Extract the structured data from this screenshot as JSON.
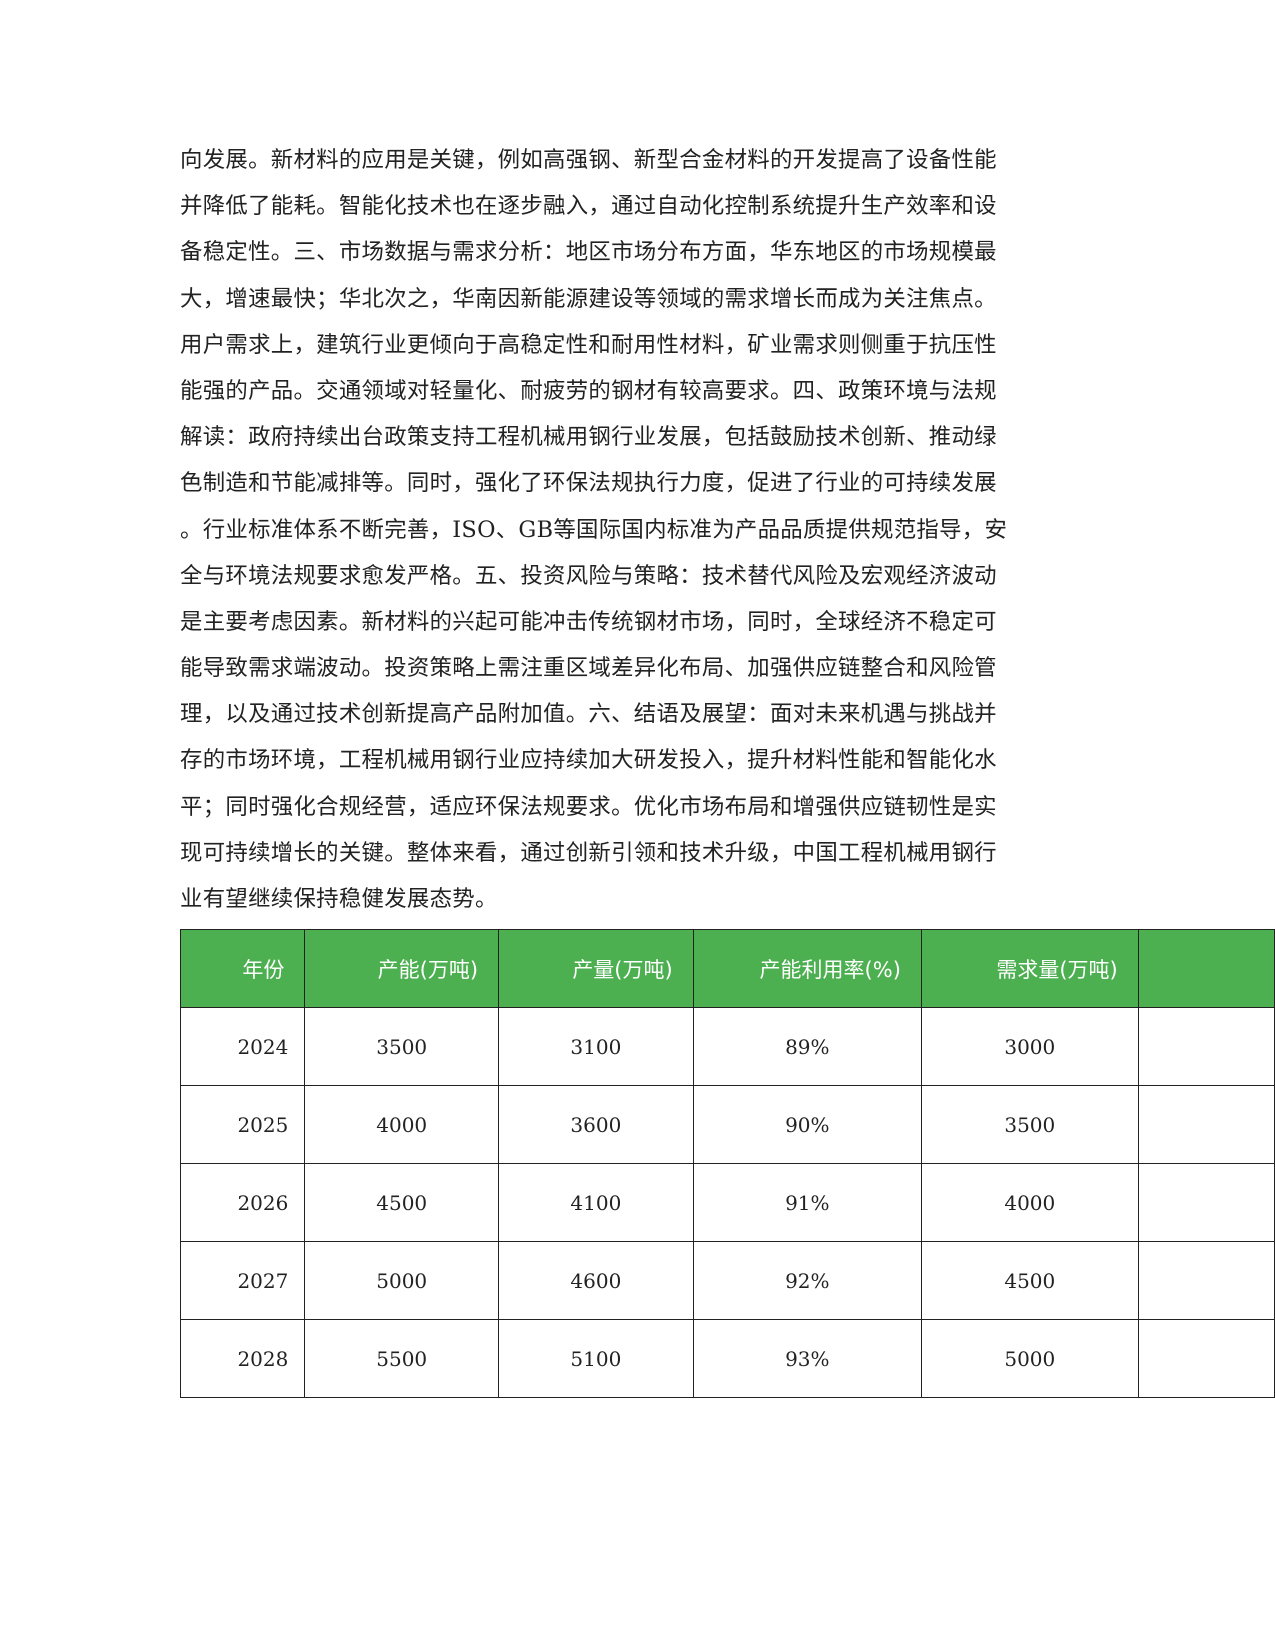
{
  "body_lines": [
    "向发展。新材料的应用是关键，例如高强钢、新型合金材料的开发提高了设备性能",
    "并降低了能耗。智能化技术也在逐步融入，通过自动化控制系统提升生产效率和设",
    "备稳定性。三、市场数据与需求分析：地区市场分布方面，华东地区的市场规模最",
    "大，增速最快；华北次之，华南因新能源建设等领域的需求增长而成为关注焦点。",
    "用户需求上，建筑行业更倾向于高稳定性和耐用性材料，矿业需求则侧重于抗压性",
    "能强的产品。交通领域对轻量化、耐疲劳的钢材有较高要求。四、政策环境与法规",
    "解读：政府持续出台政策支持工程机械用钢行业发展，包括鼓励技术创新、推动绿",
    "色制造和节能减排等。同时，强化了环保法规执行力度，促进了行业的可持续发展",
    "。行业标准体系不断完善，ISO、GB等国际国内标准为产品品质提供规范指导，安",
    "全与环境法规要求愈发严格。五、投资风险与策略：技术替代风险及宏观经济波动",
    "是主要考虑因素。新材料的兴起可能冲击传统钢材市场，同时，全球经济不稳定可",
    "能导致需求端波动。投资策略上需注重区域差异化布局、加强供应链整合和风险管",
    "理，以及通过技术创新提高产品附加值。六、结语及展望：面对未来机遇与挑战并",
    "存的市场环境，工程机械用钢行业应持续加大研发投入，提升材料性能和智能化水",
    "平；同时强化合规经营，适应环保法规要求。优化市场布局和增强供应链韧性是实",
    "现可持续增长的关键。整体来看，通过创新引领和技术升级，中国工程机械用钢行",
    "业有望继续保持稳健发展态势。"
  ],
  "table": {
    "header_color": "#4caf50",
    "headers": [
      "年份",
      "产能(万吨)",
      "产量(万吨)",
      "产能利用率(%)",
      "需求量(万吨)",
      ""
    ],
    "rows": [
      [
        "2024",
        "3500",
        "3100",
        "89%",
        "3000",
        ""
      ],
      [
        "2025",
        "4000",
        "3600",
        "90%",
        "3500",
        ""
      ],
      [
        "2026",
        "4500",
        "4100",
        "91%",
        "4000",
        ""
      ],
      [
        "2027",
        "5000",
        "4600",
        "92%",
        "4500",
        ""
      ],
      [
        "2028",
        "5500",
        "5100",
        "93%",
        "5000",
        ""
      ]
    ]
  }
}
